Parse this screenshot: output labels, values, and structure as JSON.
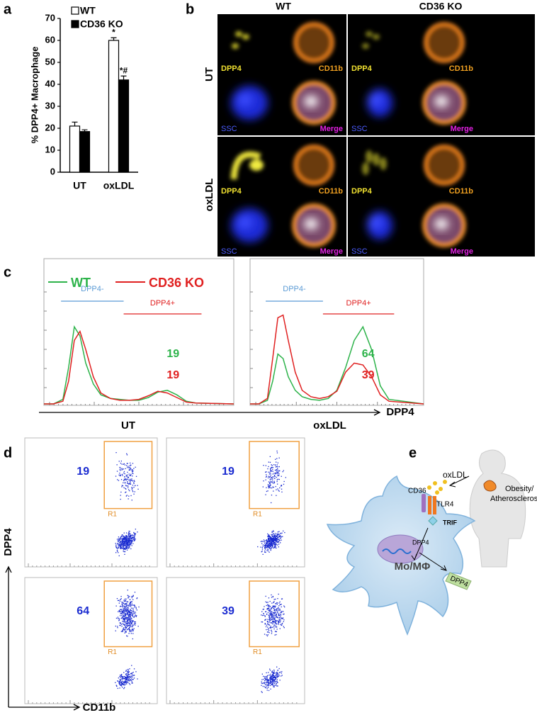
{
  "panel_labels": [
    "a",
    "b",
    "c",
    "d",
    "e"
  ],
  "chart_data": [
    {
      "type": "bar",
      "ylabel": "% DPP4+ Macrophage",
      "categories": [
        "UT",
        "oxLDL"
      ],
      "series": [
        {
          "name": "WT",
          "color": "#ffffff",
          "values": [
            21,
            60
          ],
          "errors": [
            1.8,
            1.2
          ],
          "annotations": [
            null,
            "*"
          ]
        },
        {
          "name": "CD36 KO",
          "color": "#000000",
          "values": [
            18.5,
            42
          ],
          "errors": [
            0.8,
            1.8
          ],
          "annotations": [
            null,
            "*#"
          ]
        }
      ],
      "ylim": [
        0,
        70
      ],
      "yticks": [
        0,
        10,
        20,
        30,
        40,
        50,
        60,
        70
      ]
    },
    {
      "type": "line",
      "xlabel": "UT",
      "gates": [
        "DPP4-",
        "DPP4+"
      ],
      "x": [
        0,
        0.05,
        0.1,
        0.13,
        0.16,
        0.19,
        0.22,
        0.26,
        0.3,
        0.35,
        0.4,
        0.45,
        0.5,
        0.55,
        0.6,
        0.65,
        0.7,
        0.75,
        0.8,
        1
      ],
      "xlim": [
        0,
        1
      ],
      "ylim": [
        0,
        100
      ],
      "series": [
        {
          "name": "WT",
          "color": "#2db34a",
          "gate_percent": 19,
          "values": [
            0,
            0,
            5,
            40,
            85,
            75,
            45,
            22,
            10,
            6,
            5,
            4,
            4,
            7,
            13,
            15,
            10,
            3,
            1,
            0
          ]
        },
        {
          "name": "CD36 KO",
          "color": "#e02020",
          "gate_percent": 19,
          "values": [
            0,
            0,
            3,
            25,
            70,
            80,
            60,
            30,
            12,
            6,
            4,
            4,
            5,
            9,
            14,
            12,
            7,
            2,
            1,
            0
          ]
        }
      ]
    },
    {
      "type": "line",
      "xlabel": "oxLDL",
      "axis_label": "DPP4",
      "gates": [
        "DPP4-",
        "DPP4+"
      ],
      "x": [
        0,
        0.05,
        0.1,
        0.13,
        0.16,
        0.19,
        0.22,
        0.26,
        0.3,
        0.35,
        0.4,
        0.45,
        0.5,
        0.55,
        0.6,
        0.65,
        0.7,
        0.75,
        0.8,
        1
      ],
      "xlim": [
        0,
        1
      ],
      "ylim": [
        0,
        100
      ],
      "series": [
        {
          "color": "#2db34a",
          "gate_percent": 64,
          "values": [
            0,
            0,
            4,
            25,
            55,
            50,
            30,
            15,
            8,
            5,
            4,
            6,
            15,
            40,
            70,
            85,
            60,
            20,
            5,
            0
          ]
        },
        {
          "color": "#e02020",
          "gate_percent": 39,
          "values": [
            0,
            0,
            6,
            50,
            95,
            98,
            70,
            35,
            15,
            8,
            6,
            8,
            14,
            35,
            45,
            43,
            30,
            10,
            3,
            0
          ]
        }
      ]
    }
  ],
  "microscopy": {
    "columns": [
      "WT",
      "CD36 KO"
    ],
    "rows": [
      "UT",
      "oxLDL"
    ],
    "channels": [
      "DPP4",
      "CD11b",
      "SSC",
      "Merge"
    ]
  },
  "flow": {
    "ylabel": "DPP4",
    "xlabel": "CD11b",
    "gate": "R1",
    "percents": [
      19,
      19,
      64,
      39
    ]
  },
  "diagram": {
    "condition": [
      "Obesity/",
      "Atherosclerosis"
    ],
    "ligand": "oxLDL",
    "receptors": [
      "CD36",
      "TLR4"
    ],
    "adaptor": "TRIF",
    "gene": "DPP4",
    "cell": "Mo/MΦ",
    "secreted": "DPP4"
  }
}
